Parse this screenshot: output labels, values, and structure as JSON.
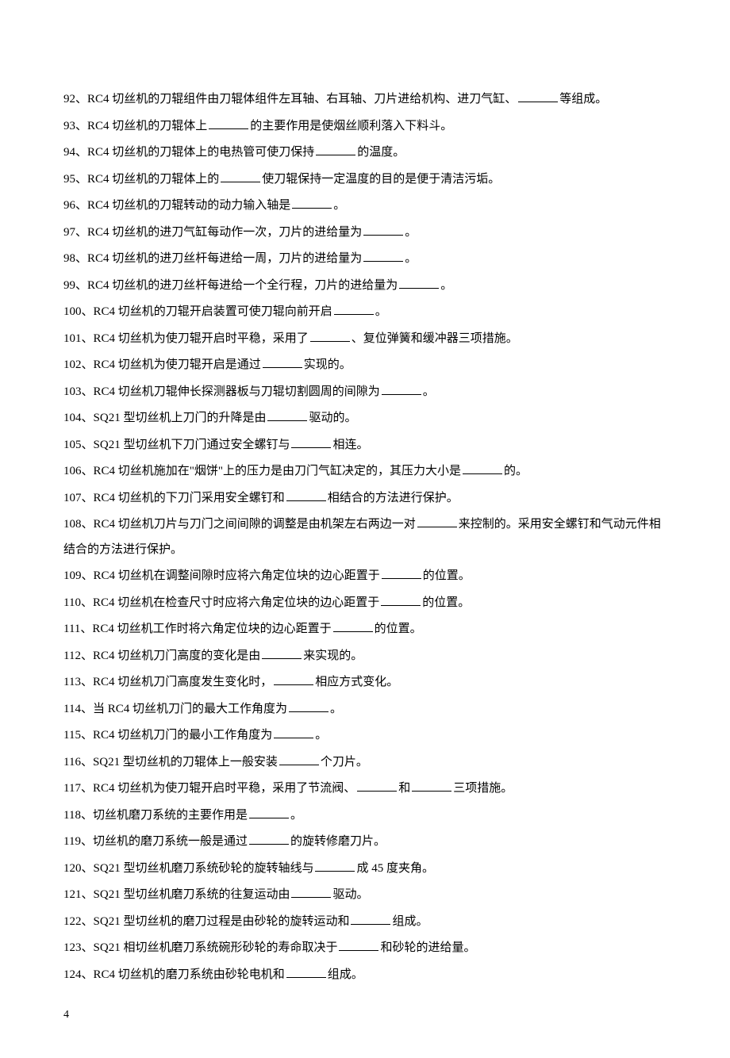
{
  "questions": [
    {
      "num": "92",
      "parts": [
        "RC4 切丝机的刀辊组件由刀辊体组件左耳轴、右耳轴、刀片进给机构、进刀气缸、",
        "BLANK",
        "等组成。"
      ]
    },
    {
      "num": "93",
      "parts": [
        "RC4 切丝机的刀辊体上",
        "BLANK",
        "的主要作用是使烟丝顺利落入下料斗。"
      ]
    },
    {
      "num": "94",
      "parts": [
        "RC4 切丝机的刀辊体上的电热管可使刀保持",
        "BLANK",
        "的温度。"
      ]
    },
    {
      "num": "95",
      "parts": [
        "RC4 切丝机的刀辊体上的",
        "BLANK",
        "使刀辊保持一定温度的目的是便于清洁污垢。"
      ]
    },
    {
      "num": "96",
      "parts": [
        "RC4 切丝机的刀辊转动的动力输入轴是",
        "BLANK",
        "。"
      ]
    },
    {
      "num": "97",
      "parts": [
        "RC4 切丝机的进刀气缸每动作一次，刀片的进给量为",
        "BLANK",
        "。"
      ]
    },
    {
      "num": "98",
      "parts": [
        "RC4 切丝机的进刀丝杆每进给一周，刀片的进给量为",
        "BLANK",
        "。"
      ]
    },
    {
      "num": "99",
      "parts": [
        "RC4 切丝机的进刀丝杆每进给一个全行程，刀片的进给量为",
        "BLANK",
        "。"
      ]
    },
    {
      "num": "100",
      "parts": [
        "RC4 切丝机的刀辊开启装置可使刀辊向前开启",
        "BLANK",
        "。"
      ]
    },
    {
      "num": "101",
      "parts": [
        "RC4 切丝机为使刀辊开启时平稳，采用了",
        "BLANK",
        "、复位弹簧和缓冲器三项措施。"
      ]
    },
    {
      "num": "102",
      "parts": [
        "RC4 切丝机为使刀辊开启是通过",
        "BLANK",
        "实现的。"
      ]
    },
    {
      "num": "103",
      "parts": [
        "RC4 切丝机刀辊伸长探测器板与刀辊切割圆周的间隙为",
        "BLANK",
        "。"
      ]
    },
    {
      "num": "104",
      "parts": [
        "SQ21 型切丝机上刀门的升降是由",
        "BLANK",
        "驱动的。"
      ]
    },
    {
      "num": "105",
      "parts": [
        "SQ21 型切丝机下刀门通过安全螺钉与",
        "BLANK",
        "相连。"
      ]
    },
    {
      "num": "106",
      "parts": [
        "RC4 切丝机施加在\"烟饼\"上的压力是由刀门气缸决定的，其压力大小是",
        "BLANK",
        "的。"
      ]
    },
    {
      "num": "107",
      "parts": [
        "RC4 切丝机的下刀门采用安全螺钉和",
        "BLANK",
        "相结合的方法进行保护。"
      ]
    },
    {
      "num": "108",
      "parts": [
        "RC4 切丝机刀片与刀门之间间隙的调整是由机架左右两边一对",
        "BLANK",
        "来控制的。采用安全螺钉和气动元件相结合的方法进行保护。"
      ]
    },
    {
      "num": "109",
      "parts": [
        "RC4 切丝机在调整间隙时应将六角定位块的边心距置于",
        "BLANK",
        "的位置。"
      ]
    },
    {
      "num": "110",
      "parts": [
        "RC4 切丝机在检查尺寸时应将六角定位块的边心距置于",
        "BLANK",
        "的位置。"
      ]
    },
    {
      "num": "111",
      "parts": [
        "RC4 切丝机工作时将六角定位块的边心距置于",
        "BLANK",
        "的位置。"
      ]
    },
    {
      "num": "112",
      "parts": [
        "RC4 切丝机刀门高度的变化是由",
        "BLANK",
        "来实现的。"
      ]
    },
    {
      "num": "113",
      "parts": [
        "RC4 切丝机刀门高度发生变化时，",
        "BLANK",
        "相应方式变化。"
      ]
    },
    {
      "num": "114",
      "parts": [
        "当 RC4 切丝机刀门的最大工作角度为",
        "BLANK",
        "。"
      ]
    },
    {
      "num": "115",
      "parts": [
        "RC4 切丝机刀门的最小工作角度为",
        "BLANK",
        "。"
      ]
    },
    {
      "num": "116",
      "parts": [
        "SQ21 型切丝机的刀辊体上一般安装",
        "BLANK",
        "个刀片。"
      ]
    },
    {
      "num": "117",
      "parts": [
        "RC4 切丝机为使刀辊开启时平稳，采用了节流阀、",
        "BLANK",
        "和",
        "BLANK",
        "三项措施。"
      ]
    },
    {
      "num": "118",
      "parts": [
        "切丝机磨刀系统的主要作用是",
        "BLANK",
        "。"
      ]
    },
    {
      "num": "119",
      "parts": [
        "切丝机的磨刀系统一般是通过",
        "BLANK",
        "的旋转修磨刀片。"
      ]
    },
    {
      "num": "120",
      "parts": [
        "SQ21 型切丝机磨刀系统砂轮的旋转轴线与",
        "BLANK",
        "成 45 度夹角。"
      ]
    },
    {
      "num": "121",
      "parts": [
        "SQ21 型切丝机磨刀系统的往复运动由",
        "BLANK",
        "驱动。"
      ]
    },
    {
      "num": "122",
      "parts": [
        "SQ21 型切丝机的磨刀过程是由砂轮的旋转运动和",
        "BLANK",
        "组成。"
      ]
    },
    {
      "num": "123",
      "parts": [
        "SQ21 相切丝机磨刀系统碗形砂轮的寿命取决于",
        "BLANK",
        "和砂轮的进给量。"
      ]
    },
    {
      "num": "124",
      "parts": [
        "RC4 切丝机的磨刀系统由砂轮电机和",
        "BLANK",
        "组成。"
      ]
    }
  ],
  "pageNumber": "4",
  "separator": "、"
}
